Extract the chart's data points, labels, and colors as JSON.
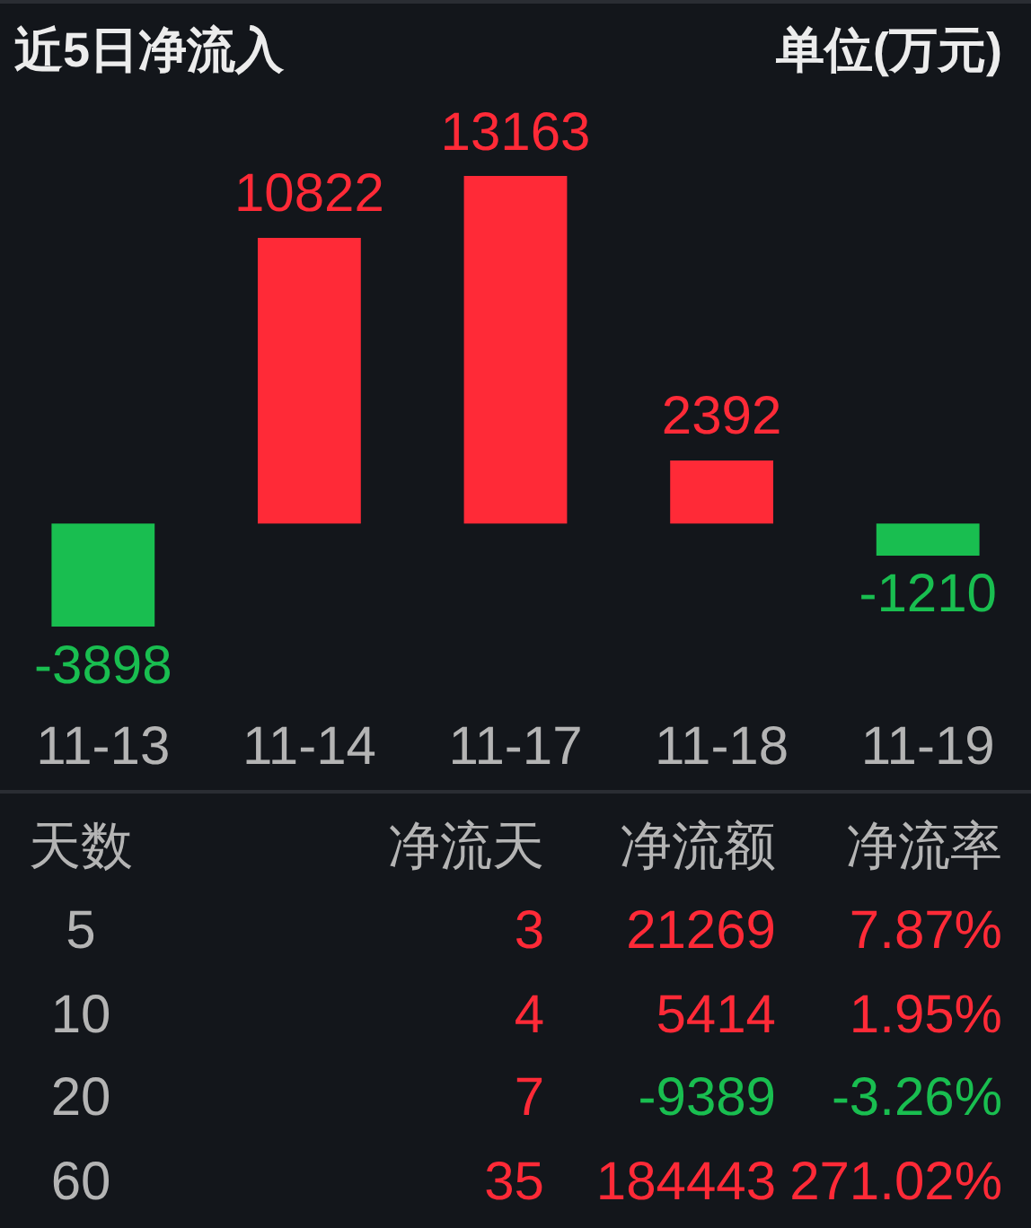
{
  "chart_data": [
    {
      "type": "bar",
      "title": "近5日净流入",
      "subtitle": "单位(万元)",
      "categories": [
        "11-13",
        "11-14",
        "11-17",
        "11-18",
        "11-19"
      ],
      "values": [
        -3898,
        10822,
        13163,
        2392,
        -1210
      ],
      "colors": [
        "#19be50",
        "#ff2a37",
        "#ff2a37",
        "#ff2a37",
        "#19be50"
      ],
      "data_labels": true,
      "tick_labels": "x"
    },
    {
      "type": "other",
      "ylabel": "天数",
      "categories": [
        "5",
        "10",
        "20",
        "60"
      ],
      "data_labels": true,
      "series": [
        {
          "name": "净流天",
          "values": [
            3,
            4,
            7,
            35
          ],
          "colors": [
            "#ff2a37",
            "#ff2a37",
            "#ff2a37",
            "#ff2a37"
          ]
        },
        {
          "name": "净流额",
          "values": [
            21269,
            5414,
            -9389,
            184443
          ],
          "colors": [
            "#ff2a37",
            "#ff2a37",
            "#19be50",
            "#ff2a37"
          ]
        },
        {
          "name": "净流率",
          "values": [
            7.87,
            1.95,
            -3.26,
            271.02
          ],
          "value_labels": [
            "7.87%",
            "1.95%",
            "-3.26%",
            "271.02%"
          ],
          "colors": [
            "#ff2a37",
            "#ff2a37",
            "#19be50",
            "#ff2a37"
          ]
        }
      ]
    }
  ]
}
